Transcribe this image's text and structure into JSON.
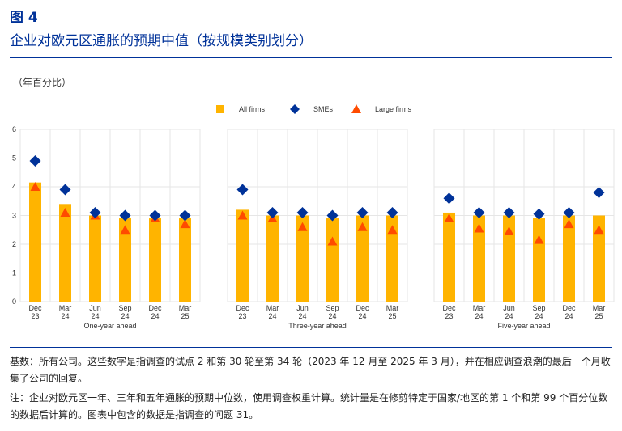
{
  "header": {
    "figure_label": "图 4",
    "title": "企业对欧元区通胀的预期中值（按规模类别划分）",
    "unit": "（年百分比）"
  },
  "colors": {
    "all_firms": "#FFB400",
    "smes": "#003299",
    "large_firms": "#FF4B00",
    "grid": "#E6E6E6",
    "text": "#333333"
  },
  "chart_data": {
    "type": "bar",
    "legend": {
      "position": "top-center",
      "entries": [
        "All firms",
        "SMEs",
        "Large firms"
      ]
    },
    "ylim": [
      0,
      6
    ],
    "yticks": [
      "0",
      "1",
      "2",
      "3",
      "4",
      "5",
      "6"
    ],
    "grid": true,
    "categories": [
      [
        "Dec",
        "23"
      ],
      [
        "Mar",
        "24"
      ],
      [
        "Jun",
        "24"
      ],
      [
        "Sep",
        "24"
      ],
      [
        "Dec",
        "24"
      ],
      [
        "Mar",
        "25"
      ]
    ],
    "panels": [
      {
        "xlabel": "One-year ahead",
        "series": [
          {
            "name": "All firms",
            "kind": "bar",
            "values": [
              4.15,
              3.4,
              3.0,
              2.9,
              2.9,
              2.9
            ]
          },
          {
            "name": "SMEs",
            "kind": "diamond",
            "values": [
              4.9,
              3.9,
              3.1,
              3.0,
              3.0,
              3.0
            ]
          },
          {
            "name": "Large firms",
            "kind": "triangle",
            "values": [
              4.0,
              3.1,
              3.0,
              2.5,
              2.9,
              2.7
            ]
          }
        ]
      },
      {
        "xlabel": "Three-year ahead",
        "series": [
          {
            "name": "All firms",
            "kind": "bar",
            "values": [
              3.2,
              3.0,
              3.0,
              2.9,
              3.0,
              3.0
            ]
          },
          {
            "name": "SMEs",
            "kind": "diamond",
            "values": [
              3.9,
              3.1,
              3.1,
              3.0,
              3.1,
              3.1
            ]
          },
          {
            "name": "Large firms",
            "kind": "triangle",
            "values": [
              3.0,
              2.9,
              2.6,
              2.1,
              2.6,
              2.5
            ]
          }
        ]
      },
      {
        "xlabel": "Five-year ahead",
        "series": [
          {
            "name": "All firms",
            "kind": "bar",
            "values": [
              3.1,
              3.0,
              3.0,
              2.9,
              3.0,
              3.0
            ]
          },
          {
            "name": "SMEs",
            "kind": "diamond",
            "values": [
              3.6,
              3.1,
              3.1,
              3.05,
              3.1,
              3.8
            ]
          },
          {
            "name": "Large firms",
            "kind": "triangle",
            "values": [
              2.9,
              2.55,
              2.45,
              2.15,
              2.7,
              2.5
            ]
          }
        ]
      }
    ]
  },
  "notes": {
    "base": "基数：所有公司。这些数字是指调查的试点 2 和第 30 轮至第 34 轮（2023 年 12 月至 2025 年 3 月），并在相应调查浪潮的最后一个月收集了公司的回复。",
    "note": "注：企业对欧元区一年、三年和五年通胀的预期中位数，使用调查权重计算。统计量是在修剪特定于国家/地区的第 1 个和第 99 个百分位数的数据后计算的。图表中包含的数据是指调查的问题 31。"
  }
}
